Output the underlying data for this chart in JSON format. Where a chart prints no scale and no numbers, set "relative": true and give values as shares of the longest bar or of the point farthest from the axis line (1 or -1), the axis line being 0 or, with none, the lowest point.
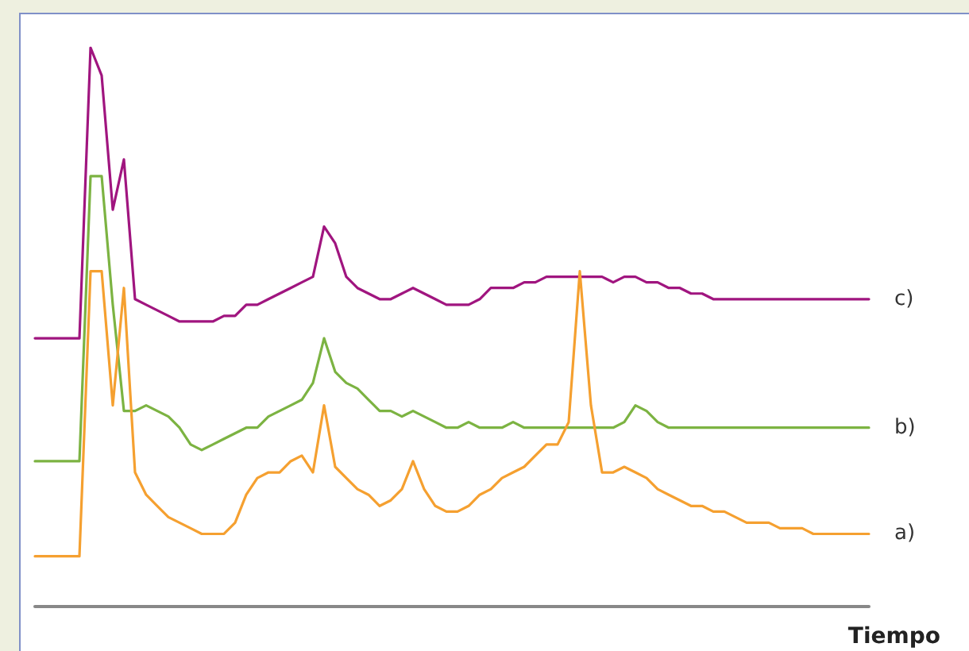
{
  "chart_data": {
    "type": "line",
    "relative": true,
    "xlabel": "Tiempo",
    "legend": false,
    "grid": false,
    "marker": "none",
    "line_style": "solid",
    "categories": [
      null,
      null,
      null,
      null,
      null,
      null,
      null,
      null,
      null,
      null,
      null,
      null,
      null,
      null,
      null,
      null,
      null,
      null,
      null,
      null,
      null,
      null,
      null,
      null,
      null,
      null,
      null,
      null,
      null,
      null,
      null,
      null,
      null,
      null,
      null,
      null,
      null,
      null,
      null,
      null,
      null,
      null,
      null,
      null,
      null,
      null,
      null,
      null,
      null,
      null,
      null,
      null,
      null,
      null,
      null,
      null,
      null,
      null,
      null,
      null,
      null,
      null,
      null,
      null,
      null,
      null,
      null,
      null,
      null,
      null,
      null,
      null,
      null,
      null,
      null,
      null
    ],
    "series": [
      {
        "name": "c)",
        "color": "#a0157f",
        "values": [
          0.48,
          0.48,
          0.48,
          0.48,
          0.48,
          1.0,
          0.95,
          0.71,
          0.8,
          0.55,
          0.54,
          0.53,
          0.52,
          0.51,
          0.51,
          0.51,
          0.51,
          0.52,
          0.52,
          0.54,
          0.54,
          0.55,
          0.56,
          0.57,
          0.58,
          0.59,
          0.68,
          0.65,
          0.59,
          0.57,
          0.56,
          0.55,
          0.55,
          0.56,
          0.57,
          0.56,
          0.55,
          0.54,
          0.54,
          0.54,
          0.55,
          0.57,
          0.57,
          0.57,
          0.58,
          0.58,
          0.59,
          0.59,
          0.59,
          0.59,
          0.59,
          0.59,
          0.58,
          0.59,
          0.59,
          0.58,
          0.58,
          0.57,
          0.57,
          0.56,
          0.56,
          0.55,
          0.55,
          0.55,
          0.55,
          0.55,
          0.55,
          0.55,
          0.55,
          0.55,
          0.55,
          0.55,
          0.55,
          0.55,
          0.55,
          0.55
        ]
      },
      {
        "name": "b)",
        "color": "#7cb342",
        "values": [
          0.26,
          0.26,
          0.26,
          0.26,
          0.26,
          0.77,
          0.77,
          0.54,
          0.35,
          0.35,
          0.36,
          0.35,
          0.34,
          0.32,
          0.29,
          0.28,
          0.29,
          0.3,
          0.31,
          0.32,
          0.32,
          0.34,
          0.35,
          0.36,
          0.37,
          0.4,
          0.48,
          0.42,
          0.4,
          0.39,
          0.37,
          0.35,
          0.35,
          0.34,
          0.35,
          0.34,
          0.33,
          0.32,
          0.32,
          0.33,
          0.32,
          0.32,
          0.32,
          0.33,
          0.32,
          0.32,
          0.32,
          0.32,
          0.32,
          0.32,
          0.32,
          0.32,
          0.32,
          0.33,
          0.36,
          0.35,
          0.33,
          0.32,
          0.32,
          0.32,
          0.32,
          0.32,
          0.32,
          0.32,
          0.32,
          0.32,
          0.32,
          0.32,
          0.32,
          0.32,
          0.32,
          0.32,
          0.32,
          0.32,
          0.32,
          0.32
        ]
      },
      {
        "name": "a)",
        "color": "#f5a030",
        "values": [
          0.09,
          0.09,
          0.09,
          0.09,
          0.09,
          0.6,
          0.6,
          0.36,
          0.57,
          0.24,
          0.2,
          0.18,
          0.16,
          0.15,
          0.14,
          0.13,
          0.13,
          0.13,
          0.15,
          0.2,
          0.23,
          0.24,
          0.24,
          0.26,
          0.27,
          0.24,
          0.36,
          0.25,
          0.23,
          0.21,
          0.2,
          0.18,
          0.19,
          0.21,
          0.26,
          0.21,
          0.18,
          0.17,
          0.17,
          0.18,
          0.2,
          0.21,
          0.23,
          0.24,
          0.25,
          0.27,
          0.29,
          0.29,
          0.33,
          0.6,
          0.36,
          0.24,
          0.24,
          0.25,
          0.24,
          0.23,
          0.21,
          0.2,
          0.19,
          0.18,
          0.18,
          0.17,
          0.17,
          0.16,
          0.15,
          0.15,
          0.15,
          0.14,
          0.14,
          0.14,
          0.13,
          0.13,
          0.13,
          0.13,
          0.13,
          0.13
        ]
      }
    ]
  }
}
